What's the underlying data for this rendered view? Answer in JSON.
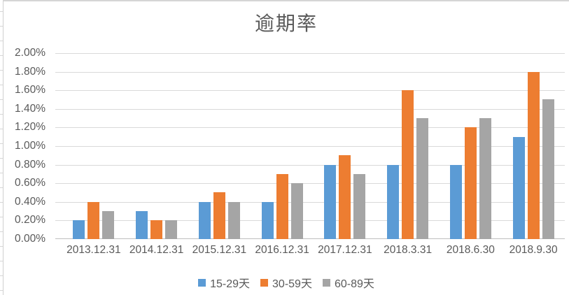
{
  "chart_data": {
    "type": "bar",
    "title": "逾期率",
    "xlabel": "",
    "ylabel": "",
    "ylim": [
      0,
      2
    ],
    "y_tick_step": 0.2,
    "unit": "%",
    "grid": true,
    "legend_position": "bottom",
    "y_ticks": [
      "2.00%",
      "1.80%",
      "1.60%",
      "1.40%",
      "1.20%",
      "1.00%",
      "0.80%",
      "0.60%",
      "0.40%",
      "0.20%",
      "0.00%"
    ],
    "categories": [
      "2013.12.31",
      "2014.12.31",
      "2015.12.31",
      "2016.12.31",
      "2017.12.31",
      "2018.3.31",
      "2018.6.30",
      "2018.9.30"
    ],
    "series": [
      {
        "name": "15-29天",
        "color": "#5B9BD5",
        "values": [
          0.2,
          0.3,
          0.4,
          0.4,
          0.8,
          0.8,
          0.8,
          1.1
        ]
      },
      {
        "name": "30-59天",
        "color": "#ED7D31",
        "values": [
          0.4,
          0.2,
          0.5,
          0.7,
          0.9,
          1.6,
          1.2,
          1.8
        ]
      },
      {
        "name": "60-89天",
        "color": "#A5A5A5",
        "values": [
          0.3,
          0.2,
          0.4,
          0.6,
          0.7,
          1.3,
          1.3,
          1.5
        ]
      }
    ]
  }
}
